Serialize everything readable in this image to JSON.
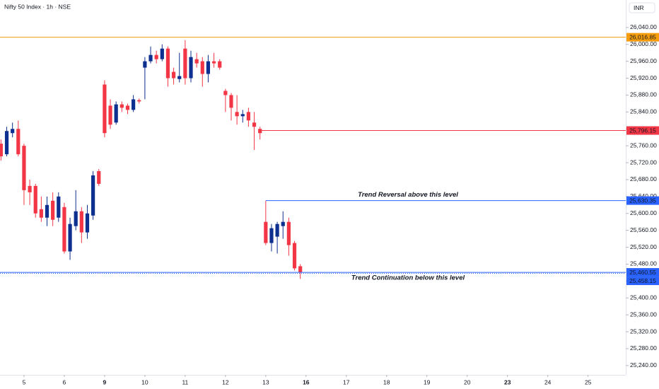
{
  "header": {
    "symbol": "Nifty 50 Index · 1h · NSE",
    "currency": "INR"
  },
  "chart_data": {
    "type": "candlestick",
    "up_color": "#0d2f8f",
    "down_color": "#f23645",
    "xlim": [
      -0.17,
      108.55
    ],
    "ylim": [
      25218,
      26105
    ],
    "xticks": [
      {
        "value": 4,
        "label": "5"
      },
      {
        "value": 11,
        "label": "6"
      },
      {
        "value": 18,
        "label": "9",
        "bold": true
      },
      {
        "value": 25,
        "label": "10"
      },
      {
        "value": 32,
        "label": "11"
      },
      {
        "value": 39,
        "label": "12"
      },
      {
        "value": 46,
        "label": "13"
      },
      {
        "value": 53,
        "label": "16",
        "bold": true
      },
      {
        "value": 60,
        "label": "17"
      },
      {
        "value": 67,
        "label": "18"
      },
      {
        "value": 74,
        "label": "19"
      },
      {
        "value": 81,
        "label": "20"
      },
      {
        "value": 88,
        "label": "23",
        "bold": true
      },
      {
        "value": 95,
        "label": "24"
      },
      {
        "value": 102,
        "label": "25"
      }
    ],
    "yticks": [
      {
        "value": 25240,
        "label": "25,240.00"
      },
      {
        "value": 25280,
        "label": "25,280.00"
      },
      {
        "value": 25320,
        "label": "25,320.00"
      },
      {
        "value": 25360,
        "label": "25,360.00"
      },
      {
        "value": 25400,
        "label": "25,400.00"
      },
      {
        "value": 25440,
        "label": "25,440.00"
      },
      {
        "value": 25480,
        "label": "25,480.00"
      },
      {
        "value": 25520,
        "label": "25,520.00"
      },
      {
        "value": 25560,
        "label": "25,560.00"
      },
      {
        "value": 25600,
        "label": "25,600.00"
      },
      {
        "value": 25640,
        "label": "25,640.00"
      },
      {
        "value": 25680,
        "label": "25,680.00"
      },
      {
        "value": 25720,
        "label": "25,720.00"
      },
      {
        "value": 25760,
        "label": "25,760.00"
      },
      {
        "value": 25800,
        "label": "25,800.00"
      },
      {
        "value": 25840,
        "label": "25,840.00"
      },
      {
        "value": 25880,
        "label": "25,880.00"
      },
      {
        "value": 25920,
        "label": "25,920.00"
      },
      {
        "value": 25960,
        "label": "25,960.00"
      },
      {
        "value": 26000,
        "label": "26,000.00"
      },
      {
        "value": 26040,
        "label": "26,040.00"
      }
    ],
    "x": [
      0,
      1,
      2,
      3,
      4,
      5,
      6,
      7,
      8,
      9,
      10,
      11,
      12,
      13,
      14,
      15,
      16,
      17,
      18,
      19,
      20,
      21,
      22,
      23,
      24,
      25,
      26,
      27,
      28,
      29,
      30,
      31,
      32,
      33,
      34,
      35,
      36,
      37,
      38,
      39,
      40,
      41,
      42,
      43,
      44,
      45,
      46,
      47,
      48,
      49,
      50,
      51,
      52
    ],
    "open": [
      25765,
      25740,
      25790,
      25800,
      25760,
      25665,
      25665,
      25610,
      25590,
      25630,
      25590,
      25615,
      25510,
      25570,
      25605,
      25555,
      25595,
      25700,
      25905,
      25855,
      25815,
      25858,
      25855,
      25845,
      25868,
      25945,
      25960,
      25975,
      25965,
      25990,
      25935,
      25918,
      25990,
      25920,
      25965,
      25960,
      25930,
      25960,
      25960,
      25890,
      25880,
      25840,
      25830,
      25840,
      25815,
      25800,
      25580,
      25530,
      25545,
      25570,
      25580,
      25530,
      25475
    ],
    "high": [
      25775,
      25805,
      25815,
      25820,
      25765,
      25680,
      25670,
      25640,
      25640,
      25650,
      25650,
      25625,
      25590,
      25655,
      25615,
      25620,
      25700,
      25705,
      25915,
      25870,
      25865,
      25865,
      25860,
      25880,
      25872,
      25970,
      25995,
      25985,
      26000,
      25995,
      25945,
      25980,
      26010,
      25985,
      25980,
      25970,
      25975,
      25980,
      25965,
      25895,
      25885,
      25880,
      25845,
      25850,
      25840,
      25805,
      25630,
      25575,
      25580,
      25605,
      25590,
      25535,
      25480
    ],
    "low": [
      25725,
      25735,
      25780,
      25735,
      25620,
      25620,
      25590,
      25580,
      25570,
      25570,
      25580,
      25505,
      25490,
      25560,
      25530,
      25540,
      25585,
      25665,
      25780,
      25800,
      25810,
      25840,
      25835,
      25840,
      25860,
      25870,
      25955,
      25955,
      25960,
      25900,
      25905,
      25910,
      25905,
      25910,
      25945,
      25900,
      25910,
      25945,
      25940,
      25840,
      25820,
      25810,
      25815,
      25805,
      25750,
      25775,
      25525,
      25510,
      25505,
      25540,
      25500,
      25465,
      25445
    ],
    "close": [
      25735,
      25795,
      25800,
      25740,
      25655,
      25650,
      25600,
      25590,
      25620,
      25585,
      25640,
      25510,
      25575,
      25605,
      25555,
      25600,
      25690,
      25670,
      25790,
      25810,
      25858,
      25850,
      25845,
      25870,
      25865,
      25960,
      25975,
      25965,
      25990,
      25920,
      25920,
      25925,
      25920,
      25970,
      25955,
      25930,
      25960,
      25955,
      25945,
      25880,
      25850,
      25830,
      25835,
      25820,
      25805,
      25790,
      25530,
      25565,
      25575,
      25580,
      25525,
      25470,
      25460
    ],
    "levels": [
      {
        "value": 26016.85,
        "label": "26,016.85",
        "color": "#f59d0c",
        "from": -0.17
      },
      {
        "value": 25796.15,
        "label": "25,796.15",
        "color": "#f23645",
        "from": 45
      },
      {
        "value": 25630.35,
        "label": "25,630.35",
        "color": "#2962ff",
        "from": 46
      },
      {
        "value": 25460.55,
        "label": "25,460.55",
        "color": "#2962ff",
        "from": -0.17
      },
      {
        "value": 25458.15,
        "label": "25,458.15",
        "color": "#2962ff",
        "from": -0.17
      }
    ],
    "annotations": [
      {
        "text": "Trend Reversal above this level",
        "color": "#43a047",
        "level": 2,
        "side": "above"
      },
      {
        "text": "Trend Continuation below this level",
        "color": "#e91e63",
        "level": 3,
        "side": "below"
      }
    ]
  }
}
